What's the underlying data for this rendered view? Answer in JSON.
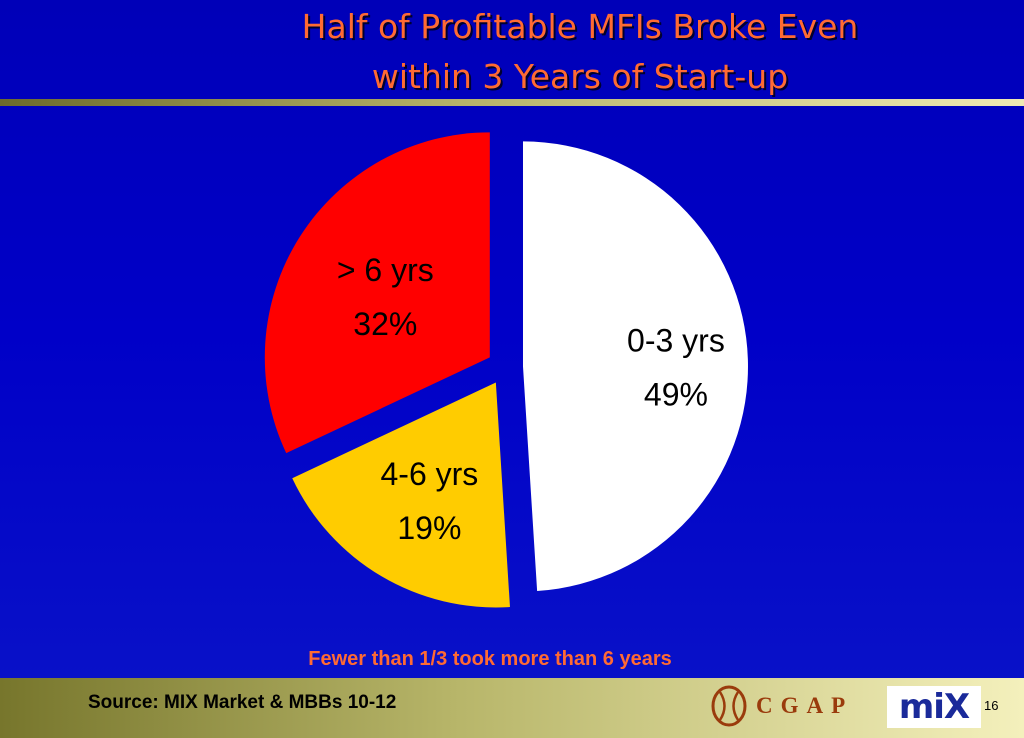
{
  "slide": {
    "title_line1": "Half of Profitable MFIs Broke Even",
    "title_line2": "within 3 Years of Start-up",
    "annotation": "Fewer than 1/3 took more than 6 years",
    "source": "Source: MIX Market & MBBs 10-12",
    "page_number": "16"
  },
  "logos": {
    "cgap": "CGAP",
    "mix": "miX"
  },
  "colors": {
    "background": "#0000c0",
    "title": "#ff6a33",
    "annotation": "#ff6a33"
  },
  "chart_data": {
    "type": "pie",
    "title": "",
    "slices": [
      {
        "label": "0-3 yrs",
        "value": 49,
        "value_label": "49%",
        "color": "#ffffff",
        "text_color": "#000000"
      },
      {
        "label": "4-6 yrs",
        "value": 19,
        "value_label": "19%",
        "color": "#ffcc00",
        "text_color": "#000000"
      },
      {
        "label": "> 6 yrs",
        "value": 32,
        "value_label": "32%",
        "color": "#ff0000",
        "text_color": "#000000"
      }
    ],
    "start_angle": "12 o'clock",
    "direction": "clockwise",
    "exploded": true,
    "legend": "none"
  }
}
